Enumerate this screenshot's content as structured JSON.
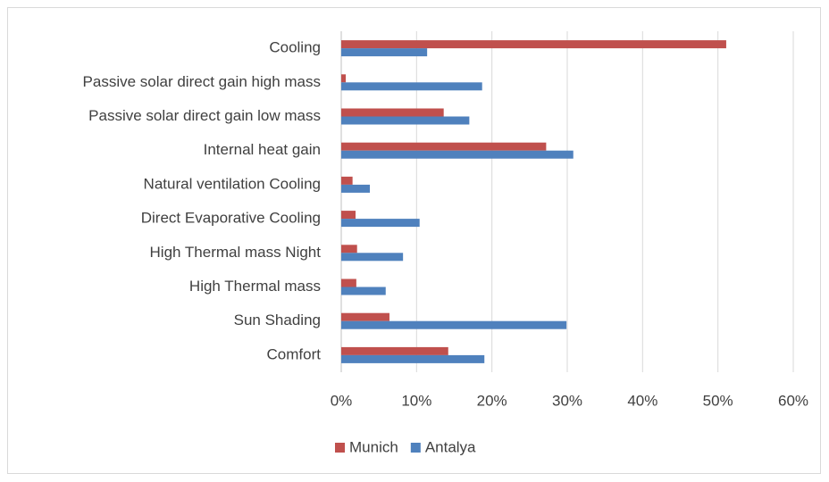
{
  "chart_data": {
    "type": "bar",
    "orientation": "horizontal",
    "categories": [
      "Cooling",
      "Passive solar direct gain high mass",
      "Passive solar direct gain low mass",
      "Internal heat gain",
      "Natural ventilation Cooling",
      "Direct Evaporative Cooling",
      "High Thermal mass Night",
      "High Thermal mass",
      "Sun Shading",
      "Comfort"
    ],
    "series": [
      {
        "name": "Munich",
        "color": "#c0504d",
        "values": [
          51.1,
          0.6,
          13.6,
          27.2,
          1.5,
          1.9,
          2.1,
          2.0,
          6.4,
          14.2
        ]
      },
      {
        "name": "Antalya",
        "color": "#4f81bd",
        "values": [
          11.4,
          18.7,
          17.0,
          30.8,
          3.8,
          10.4,
          8.2,
          5.9,
          29.9,
          19.0
        ]
      }
    ],
    "xlim": [
      0,
      60
    ],
    "xticks": [
      {
        "value": 0,
        "label": "0%"
      },
      {
        "value": 10,
        "label": "10%"
      },
      {
        "value": 20,
        "label": "20%"
      },
      {
        "value": 30,
        "label": "30%"
      },
      {
        "value": 40,
        "label": "40%"
      },
      {
        "value": 50,
        "label": "50%"
      },
      {
        "value": 60,
        "label": "60%"
      }
    ],
    "grid": true,
    "legend": "bottom"
  }
}
